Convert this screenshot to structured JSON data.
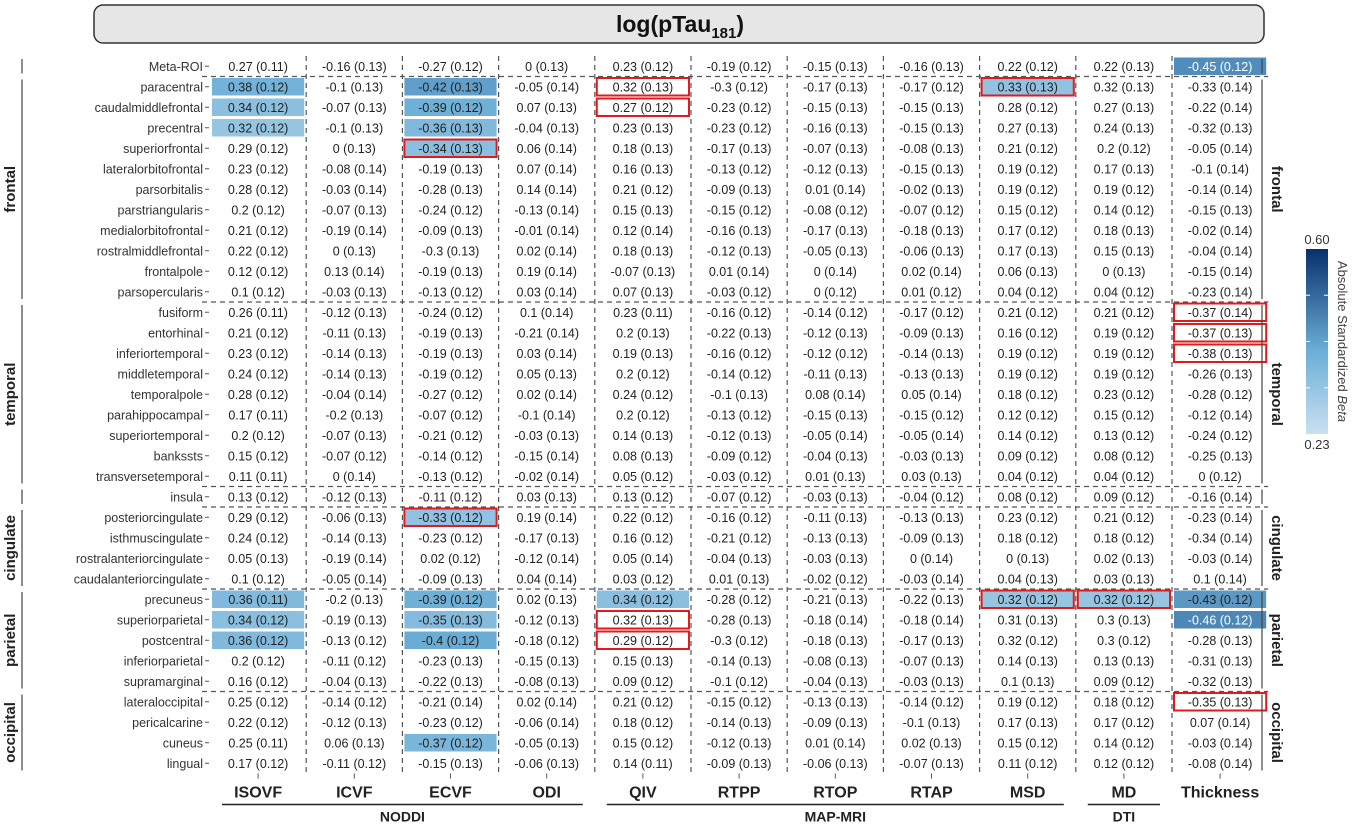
{
  "chart_data": {
    "type": "heatmap",
    "title": "log(pTau181)",
    "columns": [
      "ISOVF",
      "ICVF",
      "ECVF",
      "ODI",
      "QIV",
      "RTPP",
      "RTOP",
      "RTAP",
      "MSD",
      "MD",
      "Thickness"
    ],
    "column_groups": [
      {
        "label": "NODDI",
        "columns": [
          "ISOVF",
          "ICVF",
          "ECVF",
          "ODI"
        ]
      },
      {
        "label": "MAP-MRI",
        "columns": [
          "QIV",
          "RTPP",
          "RTOP",
          "RTAP",
          "MSD"
        ]
      },
      {
        "label": "DTI",
        "columns": [
          "MD"
        ]
      }
    ],
    "row_groups": [
      {
        "label": "",
        "rows": [
          "Meta-ROI"
        ]
      },
      {
        "label": "frontal",
        "rows": [
          "paracentral",
          "caudalmiddlefrontal",
          "precentral",
          "superiorfrontal",
          "lateralorbitofrontal",
          "parsorbitalis",
          "parstriangularis",
          "medialorbitofrontal",
          "rostralmiddlefrontal",
          "frontalpole",
          "parsopercularis"
        ]
      },
      {
        "label": "temporal",
        "rows": [
          "fusiform",
          "entorhinal",
          "inferiortemporal",
          "middletemporal",
          "temporalpole",
          "parahippocampal",
          "superiortemporal",
          "bankssts",
          "transversetemporal"
        ]
      },
      {
        "label": "",
        "rows": [
          "insula"
        ]
      },
      {
        "label": "cingulate",
        "rows": [
          "posteriorcingulate",
          "isthmuscingulate",
          "rostralanteriorcingulate",
          "caudalanteriorcingulate"
        ]
      },
      {
        "label": "parietal",
        "rows": [
          "precuneus",
          "superiorparietal",
          "postcentral",
          "inferiorparietal",
          "supramarginal"
        ]
      },
      {
        "label": "occipital",
        "rows": [
          "lateraloccipital",
          "pericalcarine",
          "cuneus",
          "lingual"
        ]
      }
    ],
    "rows": [
      "Meta-ROI",
      "paracentral",
      "caudalmiddlefrontal",
      "precentral",
      "superiorfrontal",
      "lateralorbitofrontal",
      "parsorbitalis",
      "parstriangularis",
      "medialorbitofrontal",
      "rostralmiddlefrontal",
      "frontalpole",
      "parsopercularis",
      "fusiform",
      "entorhinal",
      "inferiortemporal",
      "middletemporal",
      "temporalpole",
      "parahippocampal",
      "superiortemporal",
      "bankssts",
      "transversetemporal",
      "insula",
      "posteriorcingulate",
      "isthmuscingulate",
      "rostralanteriorcingulate",
      "caudalanteriorcingulate",
      "precuneus",
      "superiorparietal",
      "postcentral",
      "inferiorparietal",
      "supramarginal",
      "lateraloccipital",
      "pericalcarine",
      "cuneus",
      "lingual"
    ],
    "values": [
      [
        0.27,
        -0.16,
        -0.27,
        0,
        0.23,
        -0.19,
        -0.15,
        -0.16,
        0.22,
        0.22,
        -0.45
      ],
      [
        0.38,
        -0.1,
        -0.42,
        -0.05,
        0.32,
        -0.3,
        -0.17,
        -0.17,
        0.33,
        0.32,
        -0.33
      ],
      [
        0.34,
        -0.07,
        -0.39,
        0.07,
        0.27,
        -0.23,
        -0.15,
        -0.15,
        0.28,
        0.27,
        -0.22
      ],
      [
        0.32,
        -0.1,
        -0.36,
        -0.04,
        0.23,
        -0.23,
        -0.16,
        -0.15,
        0.27,
        0.24,
        -0.32
      ],
      [
        0.29,
        0,
        -0.34,
        0.06,
        0.18,
        -0.17,
        -0.07,
        -0.08,
        0.21,
        0.2,
        -0.05
      ],
      [
        0.23,
        -0.08,
        -0.19,
        0.07,
        0.16,
        -0.13,
        -0.12,
        -0.15,
        0.19,
        0.17,
        -0.1
      ],
      [
        0.28,
        -0.03,
        -0.28,
        0.14,
        0.21,
        -0.09,
        0.01,
        -0.02,
        0.19,
        0.19,
        -0.14
      ],
      [
        0.2,
        -0.07,
        -0.24,
        -0.13,
        0.15,
        -0.15,
        -0.08,
        -0.07,
        0.15,
        0.14,
        -0.15
      ],
      [
        0.21,
        -0.19,
        -0.09,
        -0.01,
        0.12,
        -0.16,
        -0.17,
        -0.18,
        0.17,
        0.18,
        -0.02
      ],
      [
        0.22,
        0,
        -0.3,
        0.02,
        0.18,
        -0.12,
        -0.05,
        -0.06,
        0.17,
        0.15,
        -0.04
      ],
      [
        0.12,
        0.13,
        -0.19,
        0.19,
        -0.07,
        0.01,
        0,
        0.02,
        0.06,
        0,
        -0.15
      ],
      [
        0.1,
        -0.03,
        -0.13,
        0.03,
        0.07,
        -0.03,
        0,
        0.01,
        0.04,
        0.04,
        -0.23
      ],
      [
        0.26,
        -0.12,
        -0.24,
        0.1,
        0.23,
        -0.16,
        -0.14,
        -0.17,
        0.21,
        0.21,
        -0.37
      ],
      [
        0.21,
        -0.11,
        -0.19,
        -0.21,
        0.2,
        -0.22,
        -0.12,
        -0.09,
        0.16,
        0.19,
        -0.37
      ],
      [
        0.23,
        -0.14,
        -0.19,
        0.03,
        0.19,
        -0.16,
        -0.12,
        -0.14,
        0.19,
        0.19,
        -0.38
      ],
      [
        0.24,
        -0.14,
        -0.19,
        0.05,
        0.2,
        -0.14,
        -0.11,
        -0.13,
        0.19,
        0.19,
        -0.26
      ],
      [
        0.28,
        -0.04,
        -0.27,
        0.02,
        0.24,
        -0.1,
        0.08,
        0.05,
        0.18,
        0.23,
        -0.28
      ],
      [
        0.17,
        -0.2,
        -0.07,
        -0.1,
        0.2,
        -0.13,
        -0.15,
        -0.15,
        0.12,
        0.15,
        -0.12
      ],
      [
        0.2,
        -0.07,
        -0.21,
        -0.03,
        0.14,
        -0.12,
        -0.05,
        -0.05,
        0.14,
        0.13,
        -0.24
      ],
      [
        0.15,
        -0.07,
        -0.14,
        -0.15,
        0.08,
        -0.09,
        -0.04,
        -0.03,
        0.09,
        0.08,
        -0.25
      ],
      [
        0.11,
        0,
        -0.13,
        -0.02,
        0.05,
        -0.03,
        0.01,
        0.03,
        0.04,
        0.04,
        0
      ],
      [
        0.13,
        -0.12,
        -0.11,
        0.03,
        0.13,
        -0.07,
        -0.03,
        -0.04,
        0.08,
        0.09,
        -0.16
      ],
      [
        0.29,
        -0.06,
        -0.33,
        0.19,
        0.22,
        -0.16,
        -0.11,
        -0.13,
        0.23,
        0.21,
        -0.23
      ],
      [
        0.24,
        -0.14,
        -0.23,
        -0.17,
        0.16,
        -0.21,
        -0.13,
        -0.09,
        0.18,
        0.18,
        -0.34
      ],
      [
        0.05,
        -0.19,
        0.02,
        -0.12,
        0.05,
        -0.04,
        -0.03,
        0,
        0,
        0.02,
        -0.03
      ],
      [
        0.1,
        -0.05,
        -0.09,
        0.04,
        0.03,
        0.01,
        -0.02,
        -0.03,
        0.04,
        0.03,
        0.1
      ],
      [
        0.36,
        -0.2,
        -0.39,
        0.02,
        0.34,
        -0.28,
        -0.21,
        -0.22,
        0.32,
        0.32,
        -0.43
      ],
      [
        0.34,
        -0.19,
        -0.35,
        -0.12,
        0.32,
        -0.28,
        -0.18,
        -0.18,
        0.31,
        0.3,
        -0.46
      ],
      [
        0.36,
        -0.13,
        -0.4,
        -0.18,
        0.29,
        -0.3,
        -0.18,
        -0.17,
        0.32,
        0.3,
        -0.28
      ],
      [
        0.2,
        -0.11,
        -0.23,
        -0.15,
        0.15,
        -0.14,
        -0.08,
        -0.07,
        0.14,
        0.13,
        -0.31
      ],
      [
        0.16,
        -0.04,
        -0.22,
        -0.08,
        0.09,
        -0.1,
        -0.04,
        -0.03,
        0.1,
        0.09,
        -0.32
      ],
      [
        0.25,
        -0.14,
        -0.21,
        0.02,
        0.21,
        -0.15,
        -0.13,
        -0.14,
        0.19,
        0.18,
        -0.35
      ],
      [
        0.22,
        -0.12,
        -0.23,
        -0.06,
        0.18,
        -0.14,
        -0.09,
        -0.1,
        0.17,
        0.17,
        0.07
      ],
      [
        0.25,
        0.06,
        -0.37,
        -0.05,
        0.15,
        -0.12,
        0.01,
        0.02,
        0.15,
        0.14,
        -0.03
      ],
      [
        0.17,
        -0.11,
        -0.15,
        -0.06,
        0.14,
        -0.09,
        -0.06,
        -0.07,
        0.11,
        0.12,
        -0.08
      ]
    ],
    "se": [
      [
        0.11,
        0.13,
        0.12,
        0.13,
        0.12,
        0.12,
        0.13,
        0.13,
        0.12,
        0.13,
        0.12
      ],
      [
        0.12,
        0.13,
        0.13,
        0.14,
        0.13,
        0.12,
        0.13,
        0.12,
        0.13,
        0.13,
        0.14
      ],
      [
        0.12,
        0.13,
        0.12,
        0.13,
        0.12,
        0.12,
        0.13,
        0.13,
        0.12,
        0.13,
        0.14
      ],
      [
        0.12,
        0.13,
        0.13,
        0.13,
        0.13,
        0.12,
        0.13,
        0.13,
        0.13,
        0.13,
        0.13
      ],
      [
        0.12,
        0.13,
        0.13,
        0.14,
        0.13,
        0.13,
        0.13,
        0.13,
        0.12,
        0.12,
        0.14
      ],
      [
        0.12,
        0.14,
        0.13,
        0.14,
        0.13,
        0.12,
        0.13,
        0.13,
        0.12,
        0.13,
        0.14
      ],
      [
        0.12,
        0.14,
        0.13,
        0.14,
        0.12,
        0.13,
        0.14,
        0.13,
        0.12,
        0.12,
        0.14
      ],
      [
        0.12,
        0.13,
        0.12,
        0.14,
        0.13,
        0.12,
        0.12,
        0.12,
        0.12,
        0.12,
        0.13
      ],
      [
        0.12,
        0.14,
        0.13,
        0.14,
        0.14,
        0.13,
        0.13,
        0.13,
        0.12,
        0.13,
        0.14
      ],
      [
        0.12,
        0.13,
        0.13,
        0.14,
        0.13,
        0.13,
        0.13,
        0.13,
        0.13,
        0.13,
        0.14
      ],
      [
        0.12,
        0.14,
        0.13,
        0.14,
        0.13,
        0.14,
        0.14,
        0.14,
        0.13,
        0.13,
        0.14
      ],
      [
        0.12,
        0.13,
        0.12,
        0.14,
        0.13,
        0.12,
        0.12,
        0.12,
        0.12,
        0.12,
        0.14
      ],
      [
        0.11,
        0.13,
        0.12,
        0.14,
        0.11,
        0.12,
        0.12,
        0.12,
        0.12,
        0.12,
        0.14
      ],
      [
        0.12,
        0.13,
        0.13,
        0.14,
        0.13,
        0.13,
        0.13,
        0.13,
        0.12,
        0.12,
        0.13
      ],
      [
        0.12,
        0.13,
        0.13,
        0.14,
        0.13,
        0.12,
        0.12,
        0.13,
        0.12,
        0.12,
        0.13
      ],
      [
        0.12,
        0.13,
        0.12,
        0.13,
        0.12,
        0.12,
        0.13,
        0.13,
        0.12,
        0.12,
        0.13
      ],
      [
        0.12,
        0.14,
        0.12,
        0.14,
        0.12,
        0.13,
        0.14,
        0.14,
        0.12,
        0.12,
        0.12
      ],
      [
        0.11,
        0.13,
        0.12,
        0.14,
        0.12,
        0.12,
        0.13,
        0.12,
        0.12,
        0.12,
        0.14
      ],
      [
        0.12,
        0.13,
        0.12,
        0.13,
        0.13,
        0.13,
        0.14,
        0.14,
        0.12,
        0.12,
        0.12
      ],
      [
        0.12,
        0.12,
        0.12,
        0.14,
        0.13,
        0.12,
        0.13,
        0.13,
        0.12,
        0.12,
        0.13
      ],
      [
        0.11,
        0.14,
        0.12,
        0.14,
        0.12,
        0.12,
        0.13,
        0.13,
        0.12,
        0.12,
        0.12
      ],
      [
        0.12,
        0.13,
        0.12,
        0.13,
        0.12,
        0.12,
        0.13,
        0.12,
        0.12,
        0.12,
        0.14
      ],
      [
        0.12,
        0.13,
        0.12,
        0.14,
        0.12,
        0.12,
        0.13,
        0.13,
        0.12,
        0.12,
        0.14
      ],
      [
        0.12,
        0.13,
        0.12,
        0.13,
        0.12,
        0.12,
        0.13,
        0.13,
        0.12,
        0.12,
        0.14
      ],
      [
        0.13,
        0.14,
        0.12,
        0.14,
        0.14,
        0.13,
        0.13,
        0.14,
        0.13,
        0.13,
        0.14
      ],
      [
        0.12,
        0.14,
        0.13,
        0.14,
        0.12,
        0.13,
        0.12,
        0.14,
        0.13,
        0.13,
        0.14
      ],
      [
        0.11,
        0.13,
        0.12,
        0.13,
        0.12,
        0.12,
        0.13,
        0.13,
        0.12,
        0.12,
        0.12
      ],
      [
        0.12,
        0.13,
        0.13,
        0.13,
        0.13,
        0.13,
        0.14,
        0.14,
        0.13,
        0.13,
        0.12
      ],
      [
        0.12,
        0.12,
        0.12,
        0.12,
        0.12,
        0.12,
        0.13,
        0.13,
        0.12,
        0.12,
        0.13
      ],
      [
        0.12,
        0.12,
        0.13,
        0.13,
        0.13,
        0.13,
        0.13,
        0.13,
        0.13,
        0.13,
        0.13
      ],
      [
        0.12,
        0.13,
        0.13,
        0.13,
        0.12,
        0.12,
        0.13,
        0.13,
        0.13,
        0.12,
        0.13
      ],
      [
        0.12,
        0.12,
        0.14,
        0.14,
        0.12,
        0.12,
        0.13,
        0.12,
        0.12,
        0.12,
        0.13
      ],
      [
        0.12,
        0.13,
        0.12,
        0.14,
        0.12,
        0.13,
        0.13,
        0.13,
        0.13,
        0.12,
        0.14
      ],
      [
        0.11,
        0.13,
        0.12,
        0.13,
        0.12,
        0.13,
        0.14,
        0.13,
        0.12,
        0.12,
        0.14
      ],
      [
        0.12,
        0.12,
        0.13,
        0.13,
        0.11,
        0.13,
        0.13,
        0.13,
        0.12,
        0.12,
        0.14
      ]
    ],
    "shaded_cells": [
      [
        0,
        10
      ],
      [
        1,
        0
      ],
      [
        1,
        2
      ],
      [
        1,
        8
      ],
      [
        2,
        0
      ],
      [
        2,
        2
      ],
      [
        3,
        0
      ],
      [
        3,
        2
      ],
      [
        4,
        2
      ],
      [
        22,
        2
      ],
      [
        26,
        0
      ],
      [
        26,
        2
      ],
      [
        26,
        4
      ],
      [
        26,
        8
      ],
      [
        26,
        9
      ],
      [
        26,
        10
      ],
      [
        27,
        0
      ],
      [
        27,
        2
      ],
      [
        27,
        10
      ],
      [
        28,
        0
      ],
      [
        28,
        2
      ],
      [
        33,
        2
      ]
    ],
    "highlighted_cells": [
      [
        1,
        4
      ],
      [
        1,
        8
      ],
      [
        2,
        4
      ],
      [
        4,
        2
      ],
      [
        12,
        10
      ],
      [
        13,
        10
      ],
      [
        14,
        10
      ],
      [
        22,
        2
      ],
      [
        26,
        8
      ],
      [
        26,
        9
      ],
      [
        27,
        4
      ],
      [
        28,
        4
      ],
      [
        31,
        10
      ]
    ],
    "colorbar": {
      "label": "Absolute Standardized Beta",
      "min": 0.23,
      "max": 0.6,
      "min_label": "0.23",
      "max_label": "0.60",
      "low_color": "#c9e0f1",
      "high_color": "#08306b"
    },
    "highlight_color": "#e31a1c"
  }
}
